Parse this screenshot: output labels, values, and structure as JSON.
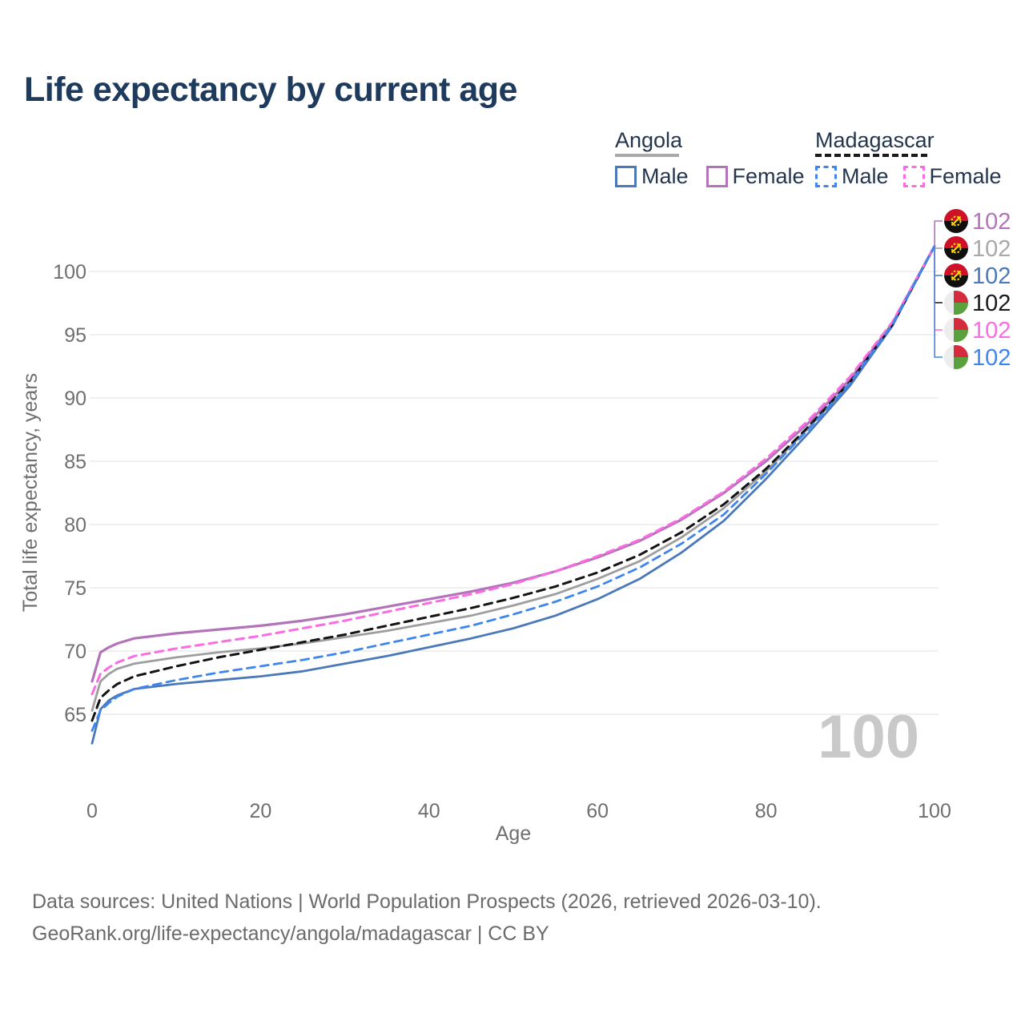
{
  "title": "Life expectancy by current age",
  "watermark": "100",
  "legend": {
    "position": "top-right",
    "groups": [
      {
        "label": "Angola",
        "line_style": "solid",
        "underline_color": "#a9a9a9",
        "items": [
          {
            "label": "Male",
            "color": "#4a78b8"
          },
          {
            "label": "Female",
            "color": "#b273b8"
          }
        ]
      },
      {
        "label": "Madagascar",
        "line_style": "dashed",
        "underline_color": "#1a1a1a",
        "items": [
          {
            "label": "Male",
            "color": "#3f86ec"
          },
          {
            "label": "Female",
            "color": "#fa6ce2"
          }
        ]
      }
    ]
  },
  "footer": {
    "line1": "Data sources: United Nations | World Population Prospects (2026, retrieved 2026-03-10).",
    "line2": "GeoRank.org/life-expectancy/angola/madagascar | CC BY"
  },
  "chart_data": {
    "type": "line",
    "title": "Life expectancy by current age",
    "xlabel": "Age",
    "ylabel": "Total life expectancy, years",
    "xlim": [
      0,
      100
    ],
    "ylim": [
      62,
      104
    ],
    "xticks": [
      0,
      20,
      40,
      60,
      80,
      100
    ],
    "yticks": [
      65,
      70,
      75,
      80,
      85,
      90,
      95,
      100
    ],
    "grid": "horizontal",
    "legend_position": "top-right",
    "x": [
      0,
      1,
      2,
      3,
      5,
      10,
      15,
      20,
      25,
      30,
      35,
      40,
      45,
      50,
      55,
      60,
      65,
      70,
      75,
      80,
      85,
      90,
      95,
      100
    ],
    "series": [
      {
        "name": "Angola Female",
        "country": "Angola",
        "sex": "Female",
        "color": "#b273b8",
        "dash": "solid",
        "width": 3.2,
        "end_label": "102",
        "end_label_color": "#b273b8",
        "values": [
          67.6,
          69.9,
          70.3,
          70.6,
          71.0,
          71.4,
          71.7,
          72.0,
          72.4,
          72.9,
          73.5,
          74.1,
          74.7,
          75.4,
          76.3,
          77.4,
          78.7,
          80.4,
          82.5,
          85.0,
          88.0,
          91.5,
          95.9,
          102
        ]
      },
      {
        "name": "Angola Both sexes",
        "country": "Angola",
        "sex": "Both",
        "color": "#9e9e9e",
        "dash": "solid",
        "width": 2.8,
        "end_label": "102",
        "end_label_color": "#a9a9a9",
        "values": [
          65.3,
          67.6,
          68.2,
          68.6,
          69.0,
          69.5,
          69.9,
          70.2,
          70.6,
          71.1,
          71.6,
          72.2,
          72.8,
          73.6,
          74.5,
          75.7,
          77.1,
          79.0,
          81.3,
          84.2,
          87.6,
          91.2,
          95.8,
          102
        ]
      },
      {
        "name": "Angola Male",
        "country": "Angola",
        "sex": "Male",
        "color": "#4a78b8",
        "dash": "solid",
        "width": 2.8,
        "end_label": "102",
        "end_label_color": "#4a78b8",
        "values": [
          62.7,
          65.4,
          66.1,
          66.5,
          67.0,
          67.4,
          67.7,
          68.0,
          68.4,
          69.0,
          69.6,
          70.3,
          71.0,
          71.8,
          72.8,
          74.1,
          75.7,
          77.8,
          80.3,
          83.6,
          87.2,
          91.0,
          95.7,
          102
        ]
      },
      {
        "name": "Madagascar Both sexes",
        "country": "Madagascar",
        "sex": "Both",
        "color": "#141414",
        "dash": "dashed",
        "width": 3.0,
        "end_label": "102",
        "end_label_color": "#1a1a1a",
        "values": [
          64.5,
          66.3,
          66.9,
          67.4,
          68.0,
          68.8,
          69.5,
          70.1,
          70.7,
          71.3,
          72.0,
          72.7,
          73.4,
          74.2,
          75.1,
          76.2,
          77.6,
          79.4,
          81.6,
          84.4,
          87.7,
          91.3,
          95.8,
          102
        ]
      },
      {
        "name": "Madagascar Female",
        "country": "Madagascar",
        "sex": "Female",
        "color": "#fa6ce2",
        "dash": "dashed",
        "width": 3.0,
        "end_label": "102",
        "end_label_color": "#fa6ce2",
        "values": [
          66.6,
          68.2,
          68.7,
          69.1,
          69.6,
          70.2,
          70.7,
          71.2,
          71.8,
          72.4,
          73.1,
          73.8,
          74.5,
          75.3,
          76.3,
          77.5,
          78.8,
          80.5,
          82.6,
          85.2,
          88.2,
          91.7,
          96.0,
          102
        ]
      },
      {
        "name": "Madagascar Male",
        "country": "Madagascar",
        "sex": "Male",
        "color": "#3f86ec",
        "dash": "dashed",
        "width": 2.8,
        "end_label": "102",
        "end_label_color": "#3f86ec",
        "values": [
          63.7,
          65.3,
          65.9,
          66.4,
          67.0,
          67.7,
          68.3,
          68.8,
          69.3,
          69.9,
          70.6,
          71.3,
          72.0,
          72.9,
          73.9,
          75.1,
          76.6,
          78.5,
          80.8,
          84.0,
          87.5,
          91.2,
          95.8,
          102
        ]
      }
    ]
  }
}
